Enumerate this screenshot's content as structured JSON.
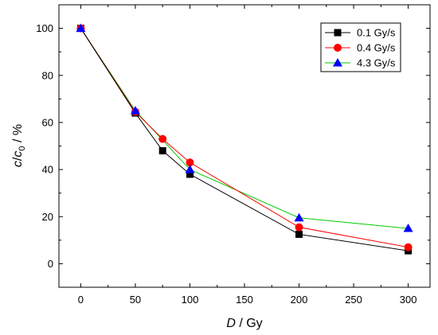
{
  "chart_data": {
    "type": "line",
    "xlabel": {
      "italic": "D",
      "rest": " / Gy"
    },
    "ylabel": {
      "italic_c": "c",
      "slash": "/",
      "italic_c0": "c",
      "sub": "0",
      "rest": " / %"
    },
    "xlim": [
      -20,
      320
    ],
    "ylim": [
      -10,
      110
    ],
    "x_ticks": [
      0,
      50,
      100,
      150,
      200,
      250,
      300
    ],
    "y_ticks": [
      0,
      20,
      40,
      60,
      80,
      100
    ],
    "grid": false,
    "legend_position": "top-right",
    "series": [
      {
        "name": "0.1 Gy/s",
        "color": "#000000",
        "marker": "square",
        "x": [
          0,
          50,
          75,
          100,
          200,
          300
        ],
        "y": [
          100,
          64,
          48,
          38,
          12.5,
          5.5
        ]
      },
      {
        "name": "0.4 Gy/s",
        "color": "#ff0000",
        "marker": "circle",
        "x": [
          0,
          50,
          75,
          100,
          200,
          300
        ],
        "y": [
          100,
          64.5,
          53,
          43,
          15.5,
          7
        ]
      },
      {
        "name": "4.3 Gy/s",
        "color": "#00cc00",
        "marker_color": "#0000ff",
        "marker": "triangle",
        "x": [
          0,
          50,
          100,
          200,
          300
        ],
        "y": [
          100,
          65,
          40,
          19.5,
          15
        ]
      }
    ]
  }
}
